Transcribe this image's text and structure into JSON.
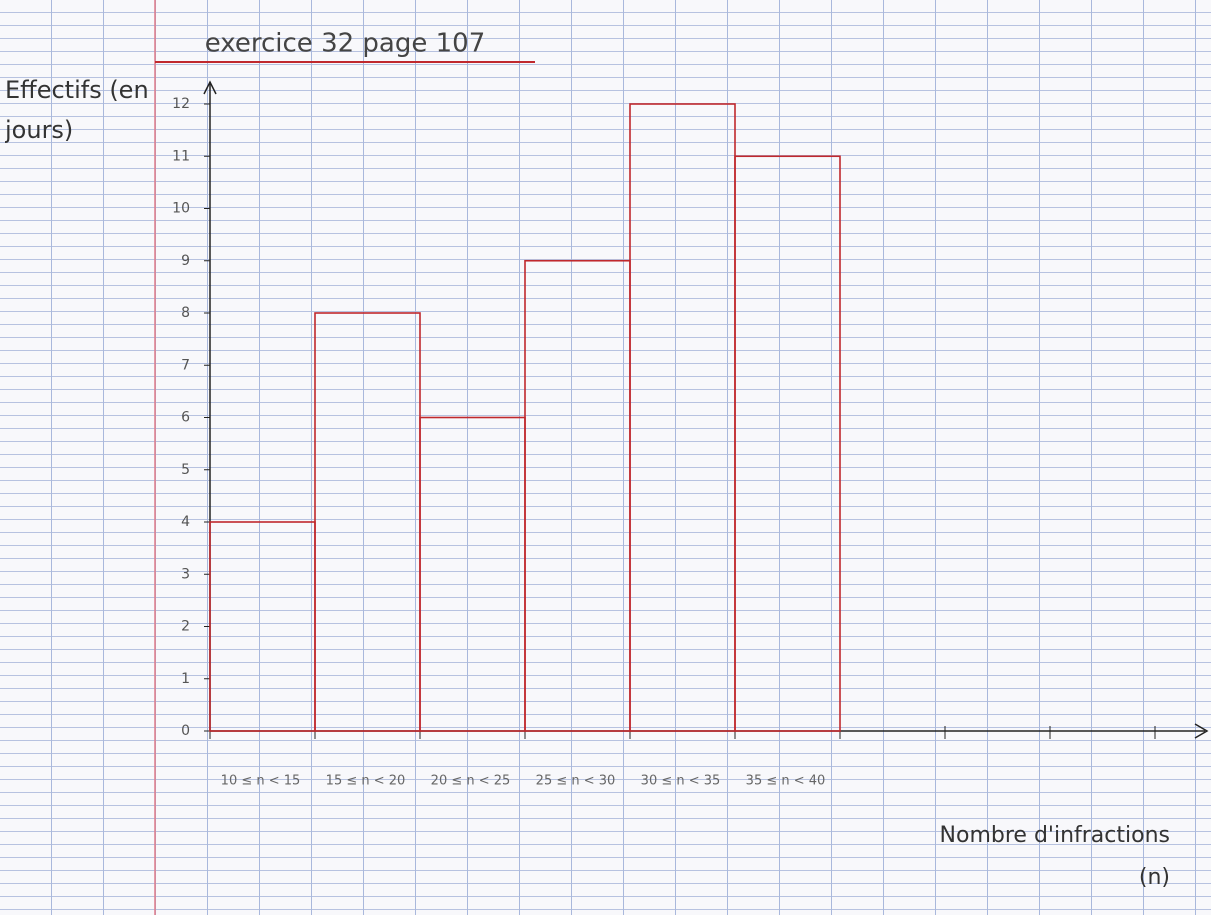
{
  "chart_data": {
    "type": "bar",
    "title": "exercice 32 page 107",
    "y_label": "Effectifs (en jours)",
    "x_label": "Nombre d'infractions (n)",
    "categories": [
      "10 ≤ n < 15",
      "15 ≤ n < 20",
      "20 ≤ n < 25",
      "25 ≤ n < 30",
      "30 ≤ n < 35",
      "35 ≤ n < 40"
    ],
    "values": [
      4,
      8,
      6,
      9,
      12,
      11
    ],
    "color": "#c0282d",
    "ylim": [
      0,
      12
    ],
    "yticks": [
      0,
      1,
      2,
      3,
      4,
      5,
      6,
      7,
      8,
      9,
      10,
      11,
      12
    ]
  }
}
